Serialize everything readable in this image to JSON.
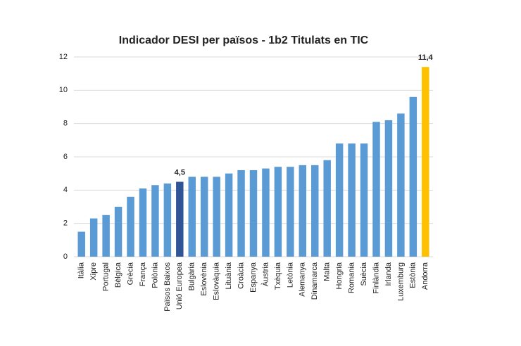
{
  "chart_data": {
    "type": "bar",
    "title": "Indicador DESI per països - 1b2 Titulats en TIC",
    "categories": [
      "Itàlia",
      "Xipre",
      "Portugal",
      "Bèlgica",
      "Grècia",
      "França",
      "Polònia",
      "Països Baixos",
      "Unió Europea",
      "Bulgària",
      "Eslovènia",
      "Eslovàquia",
      "Lituània",
      "Croàcia",
      "Espanya",
      "Àustria",
      "Txèquia",
      "Letònia",
      "Alemanya",
      "Dinamarca",
      "Malta",
      "Hongria",
      "Romania",
      "Suècia",
      "Finlàndia",
      "Irlanda",
      "Luxemburg",
      "Estònia",
      "Andorra"
    ],
    "values": [
      1.5,
      2.3,
      2.5,
      3.0,
      3.6,
      4.1,
      4.3,
      4.4,
      4.5,
      4.8,
      4.8,
      4.8,
      5.0,
      5.2,
      5.2,
      5.3,
      5.4,
      5.4,
      5.5,
      5.5,
      5.8,
      6.8,
      6.8,
      6.8,
      8.1,
      8.2,
      8.6,
      9.6,
      11.4
    ],
    "value_labels": [
      null,
      null,
      null,
      null,
      null,
      null,
      null,
      null,
      "4,5",
      null,
      null,
      null,
      null,
      null,
      null,
      null,
      null,
      null,
      null,
      null,
      null,
      null,
      null,
      null,
      null,
      null,
      null,
      null,
      "11,4"
    ],
    "colors": [
      "#5b9bd5",
      "#5b9bd5",
      "#5b9bd5",
      "#5b9bd5",
      "#5b9bd5",
      "#5b9bd5",
      "#5b9bd5",
      "#5b9bd5",
      "#2f5597",
      "#5b9bd5",
      "#5b9bd5",
      "#5b9bd5",
      "#5b9bd5",
      "#5b9bd5",
      "#5b9bd5",
      "#5b9bd5",
      "#5b9bd5",
      "#5b9bd5",
      "#5b9bd5",
      "#5b9bd5",
      "#5b9bd5",
      "#5b9bd5",
      "#5b9bd5",
      "#5b9bd5",
      "#5b9bd5",
      "#5b9bd5",
      "#5b9bd5",
      "#5b9bd5",
      "#ffc000"
    ],
    "ylim": [
      0,
      12
    ],
    "yticks": [
      0,
      2,
      4,
      6,
      8,
      10,
      12
    ],
    "grid": true
  }
}
